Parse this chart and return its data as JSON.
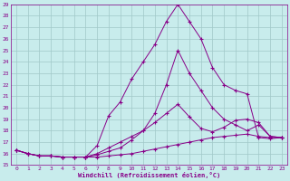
{
  "xlabel": "Windchill (Refroidissement éolien,°C)",
  "bg_color": "#c8ecec",
  "grid_color": "#a0c8c8",
  "line_color": "#880088",
  "xlim": [
    -0.5,
    23.5
  ],
  "ylim": [
    15,
    29
  ],
  "xticks": [
    0,
    1,
    2,
    3,
    4,
    5,
    6,
    7,
    8,
    9,
    10,
    11,
    12,
    13,
    14,
    15,
    16,
    17,
    18,
    19,
    20,
    21,
    22,
    23
  ],
  "yticks": [
    15,
    16,
    17,
    18,
    19,
    20,
    21,
    22,
    23,
    24,
    25,
    26,
    27,
    28,
    29
  ],
  "line1_x": [
    0,
    1,
    2,
    3,
    4,
    5,
    6,
    7,
    8,
    9,
    10,
    11,
    12,
    13,
    14,
    15,
    16,
    17,
    18,
    19,
    20,
    21,
    22,
    23
  ],
  "line1_y": [
    16.3,
    16.0,
    15.8,
    15.8,
    15.7,
    15.7,
    15.7,
    15.7,
    15.8,
    15.9,
    16.0,
    16.2,
    16.4,
    16.6,
    16.8,
    17.0,
    17.2,
    17.4,
    17.5,
    17.6,
    17.7,
    17.5,
    17.4,
    17.4
  ],
  "line2_x": [
    0,
    1,
    2,
    3,
    4,
    5,
    6,
    7,
    8,
    9,
    10,
    11,
    12,
    13,
    14,
    15,
    16,
    17,
    18,
    19,
    20,
    21,
    22,
    23
  ],
  "line2_y": [
    16.3,
    16.0,
    15.8,
    15.8,
    15.7,
    15.7,
    15.7,
    16.0,
    16.5,
    17.0,
    17.5,
    18.0,
    18.7,
    19.5,
    20.3,
    19.2,
    18.2,
    17.9,
    18.3,
    18.9,
    19.0,
    18.7,
    17.5,
    17.4
  ],
  "line3_x": [
    0,
    1,
    2,
    3,
    4,
    5,
    6,
    7,
    8,
    9,
    10,
    11,
    12,
    13,
    14,
    15,
    16,
    17,
    18,
    19,
    20,
    21,
    22,
    23
  ],
  "line3_y": [
    16.3,
    16.0,
    15.8,
    15.8,
    15.7,
    15.7,
    15.7,
    15.9,
    16.2,
    16.5,
    17.2,
    18.0,
    19.5,
    22.0,
    25.0,
    23.0,
    21.5,
    20.0,
    19.0,
    18.5,
    18.0,
    18.5,
    17.5,
    17.4
  ],
  "line4_x": [
    0,
    1,
    2,
    3,
    4,
    5,
    6,
    7,
    8,
    9,
    10,
    11,
    12,
    13,
    14,
    15,
    16,
    17,
    18,
    19,
    20,
    21,
    22,
    23
  ],
  "line4_y": [
    16.3,
    16.0,
    15.8,
    15.8,
    15.7,
    15.7,
    15.7,
    16.7,
    19.3,
    20.5,
    22.5,
    24.0,
    25.5,
    27.5,
    29.0,
    27.5,
    26.0,
    23.5,
    22.0,
    21.5,
    21.2,
    17.4,
    17.3,
    17.4
  ]
}
